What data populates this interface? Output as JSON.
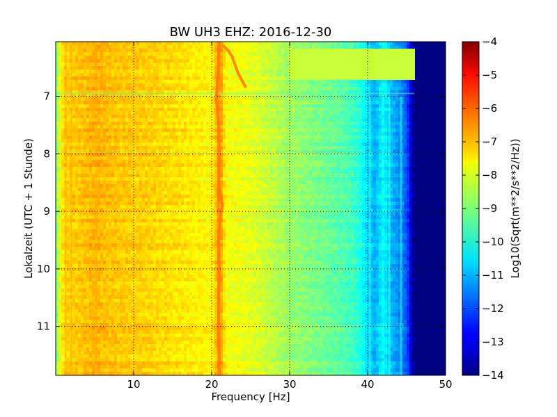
{
  "chart_data": {
    "type": "heatmap",
    "title": "BW UH3 EHZ: 2016-12-30",
    "xlabel": "Frequency [Hz]",
    "ylabel": "Lokalzeit (UTC + 1 Stunde)",
    "xlim": [
      0,
      50
    ],
    "ylim": [
      6.05,
      11.85
    ],
    "y_inverted": true,
    "x_ticks": [
      10,
      20,
      30,
      40,
      50
    ],
    "y_ticks": [
      7,
      8,
      9,
      10,
      11
    ],
    "grid": true,
    "colormap": "jet",
    "colorbar": {
      "label": "Log10(Sqrt(m**2/s**2/Hz))",
      "range": [
        -14,
        -4
      ],
      "ticks": [
        -4,
        -5,
        -6,
        -7,
        -8,
        -9,
        -10,
        -11,
        -12,
        -13,
        -14
      ]
    },
    "spectrum_profile": {
      "frequency_hz": [
        0,
        0.5,
        1,
        3,
        5,
        8,
        12,
        16,
        18,
        20,
        20.5,
        21,
        21.5,
        22,
        24,
        26,
        28,
        30,
        32,
        34,
        36,
        38,
        39,
        40,
        41,
        42,
        43,
        44,
        45,
        45.5,
        46,
        50
      ],
      "log10_amplitude": [
        -9.0,
        -8.1,
        -7.3,
        -7.2,
        -7.0,
        -7.2,
        -7.3,
        -7.5,
        -7.6,
        -7.7,
        -7.2,
        -6.5,
        -7.3,
        -7.8,
        -7.9,
        -8.1,
        -8.4,
        -8.7,
        -8.9,
        -9.1,
        -9.3,
        -9.6,
        -9.9,
        -10.6,
        -11.0,
        -10.2,
        -10.9,
        -11.3,
        -11.8,
        -13.0,
        -14.0,
        -14.0
      ]
    },
    "spectral_line": {
      "time_h": [
        6.05,
        6.9,
        7.0,
        7.5,
        8.0,
        8.5,
        8.9,
        9.1,
        9.5,
        10.0,
        10.5,
        11.0,
        11.5,
        11.85
      ],
      "frequency_hz": [
        21.0,
        20.7,
        20.6,
        20.9,
        21.0,
        20.9,
        21.4,
        21.1,
        20.9,
        21.0,
        20.9,
        20.9,
        21.0,
        21.0
      ],
      "log10_amplitude": -6.5
    },
    "transient_track": {
      "time_h": [
        6.1,
        6.2,
        6.3,
        6.45,
        6.6,
        6.75,
        6.85
      ],
      "frequency_hz": [
        21.3,
        22.1,
        22.6,
        23.0,
        23.4,
        24.0,
        24.4
      ],
      "log10_amplitude": -6.6
    },
    "high_frequency_band": {
      "time_h": [
        6.2,
        6.7
      ],
      "frequency_hz": [
        30,
        46
      ],
      "log10_amplitude": -8.3,
      "note_time_h": 6.95
    },
    "low_amplitude_lines_hz": [
      40.3,
      42.8,
      44.3
    ],
    "strong_low_frequency_lines_hz": [
      5.2,
      2.0,
      1.3
    ]
  }
}
